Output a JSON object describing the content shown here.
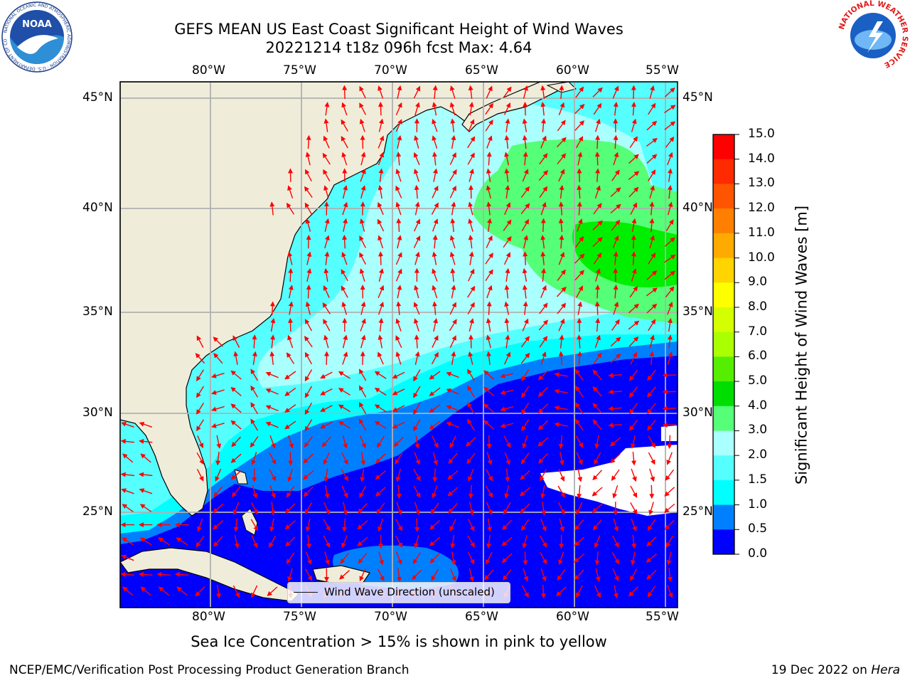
{
  "header": {
    "title_line1": "GEFS MEAN US East Coast Significant Height of Wind Waves",
    "title_line2": "20221214 t18z 096h fcst   Max: 4.64"
  },
  "logos": {
    "noaa_text": "NOAA",
    "noaa_ring_text": "NATIONAL OCEANIC AND ATMOSPHERIC ADMINISTRATION · U.S. DEPARTMENT OF COMMERCE",
    "nws_ring_text": "NATIONAL WEATHER SERVICE"
  },
  "map": {
    "lon_labels": [
      "80°W",
      "75°W",
      "70°W",
      "65°W",
      "60°W",
      "55°W"
    ],
    "lat_labels": [
      "45°N",
      "40°N",
      "35°N",
      "30°N",
      "25°N"
    ],
    "legend_label": "Wind Wave Direction (unscaled)",
    "colors": {
      "land": "#efedda",
      "ocean_low": "#0000ff",
      "arrow": "#ff0000",
      "grid": "#b0b0b0"
    }
  },
  "colorbar": {
    "ticks": [
      "15.0",
      "14.0",
      "13.0",
      "12.0",
      "11.0",
      "10.0",
      "9.0",
      "8.0",
      "7.0",
      "6.0",
      "5.0",
      "4.0",
      "3.0",
      "2.0",
      "1.5",
      "1.0",
      "0.5",
      "0.0"
    ],
    "colors": [
      "#ff0000",
      "#ff2a00",
      "#ff5500",
      "#ff8000",
      "#ffaa00",
      "#ffd400",
      "#ffff00",
      "#d4ff00",
      "#aaff00",
      "#55ee00",
      "#00dd00",
      "#55ff77",
      "#aaffff",
      "#55ffff",
      "#00ffff",
      "#0080ff",
      "#0000ff"
    ],
    "label": "Significant Height of Wind Waves [m]"
  },
  "note": "Sea Ice Concentration > 15% is shown in pink to yellow",
  "footer": {
    "left": "NCEP/EMC/Verification Post Processing Product Generation Branch",
    "right_date": "19 Dec 2022 on",
    "right_machine": "Hera"
  }
}
